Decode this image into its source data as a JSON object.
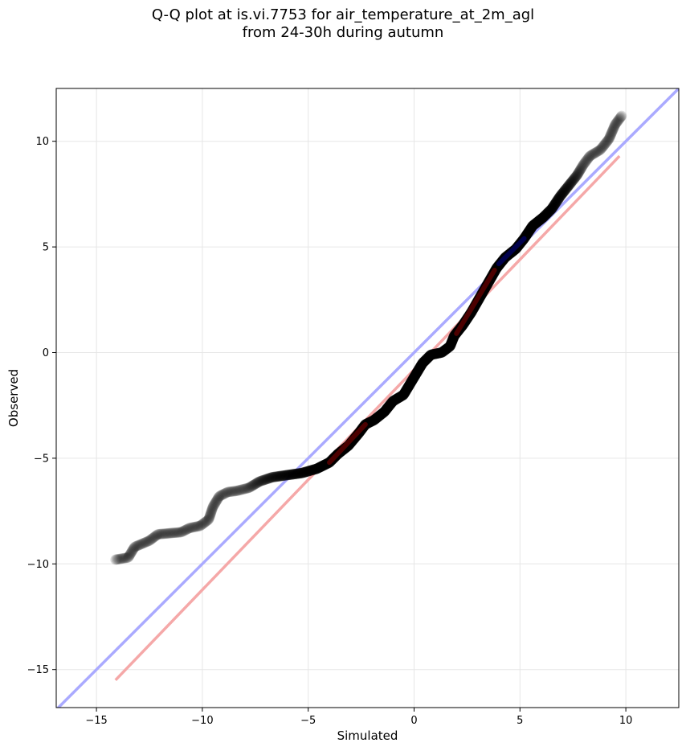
{
  "chart_data": {
    "type": "scatter",
    "title_line1": "Q-Q plot at is.vi.7753 for air_temperature_at_2m_agl",
    "title_line2": "from 24-30h during autumn",
    "xlabel": "Simulated",
    "ylabel": "Observed",
    "xlim": [
      -16.9,
      12.5
    ],
    "ylim": [
      -16.8,
      12.5
    ],
    "xticks": [
      -15,
      -10,
      -5,
      0,
      5,
      10
    ],
    "yticks": [
      -15,
      -10,
      -5,
      0,
      5,
      10
    ],
    "xtick_labels": [
      "−15",
      "−10",
      "−5",
      "0",
      "5",
      "10"
    ],
    "ytick_labels": [
      "−15",
      "−10",
      "−5",
      "0",
      "5",
      "10"
    ],
    "grid": true,
    "identity_line": {
      "color": "#aaaaff",
      "x": [
        -16.9,
        12.5
      ],
      "y": [
        -16.9,
        12.5
      ]
    },
    "fit_line": {
      "color": "#f5a8a8",
      "x": [
        -14.1,
        9.7
      ],
      "y": [
        -15.5,
        9.3
      ]
    },
    "point_color": "#000000",
    "quantile_curve": [
      [
        -14.1,
        -9.8
      ],
      [
        -13.5,
        -9.7
      ],
      [
        -13.2,
        -9.2
      ],
      [
        -12.5,
        -8.9
      ],
      [
        -12.1,
        -8.6
      ],
      [
        -11.0,
        -8.5
      ],
      [
        -10.6,
        -8.3
      ],
      [
        -10.1,
        -8.2
      ],
      [
        -9.7,
        -7.9
      ],
      [
        -9.5,
        -7.3
      ],
      [
        -9.2,
        -6.8
      ],
      [
        -8.8,
        -6.6
      ],
      [
        -8.4,
        -6.55
      ],
      [
        -7.8,
        -6.4
      ],
      [
        -7.3,
        -6.1
      ],
      [
        -6.7,
        -5.9
      ],
      [
        -6.0,
        -5.8
      ],
      [
        -5.3,
        -5.7
      ],
      [
        -4.6,
        -5.5
      ],
      [
        -4.0,
        -5.2
      ],
      [
        -3.6,
        -4.8
      ],
      [
        -3.1,
        -4.4
      ],
      [
        -2.6,
        -3.8
      ],
      [
        -2.3,
        -3.4
      ],
      [
        -1.9,
        -3.2
      ],
      [
        -1.4,
        -2.8
      ],
      [
        -1.0,
        -2.3
      ],
      [
        -0.5,
        -2.0
      ],
      [
        -0.2,
        -1.5
      ],
      [
        0.1,
        -1.0
      ],
      [
        0.4,
        -0.5
      ],
      [
        0.8,
        -0.1
      ],
      [
        1.3,
        0.0
      ],
      [
        1.7,
        0.3
      ],
      [
        1.9,
        0.8
      ],
      [
        2.3,
        1.3
      ],
      [
        2.7,
        1.9
      ],
      [
        3.1,
        2.6
      ],
      [
        3.5,
        3.3
      ],
      [
        3.9,
        4.0
      ],
      [
        4.3,
        4.5
      ],
      [
        4.8,
        4.9
      ],
      [
        5.2,
        5.4
      ],
      [
        5.6,
        6.0
      ],
      [
        6.1,
        6.4
      ],
      [
        6.5,
        6.8
      ],
      [
        6.9,
        7.4
      ],
      [
        7.3,
        7.9
      ],
      [
        7.7,
        8.4
      ],
      [
        8.0,
        8.9
      ],
      [
        8.3,
        9.3
      ],
      [
        8.8,
        9.6
      ],
      [
        9.2,
        10.1
      ],
      [
        9.5,
        10.8
      ],
      [
        9.8,
        11.2
      ]
    ],
    "highlight_segments": [
      {
        "color": "#8b0000",
        "from": [
          -4.0,
          -5.2
        ],
        "to": [
          -2.3,
          -3.4
        ]
      },
      {
        "color": "#8b0000",
        "from": [
          2.0,
          0.9
        ],
        "to": [
          3.8,
          3.9
        ]
      },
      {
        "color": "#00008b",
        "from": [
          4.0,
          4.2
        ],
        "to": [
          5.2,
          5.4
        ]
      }
    ]
  }
}
